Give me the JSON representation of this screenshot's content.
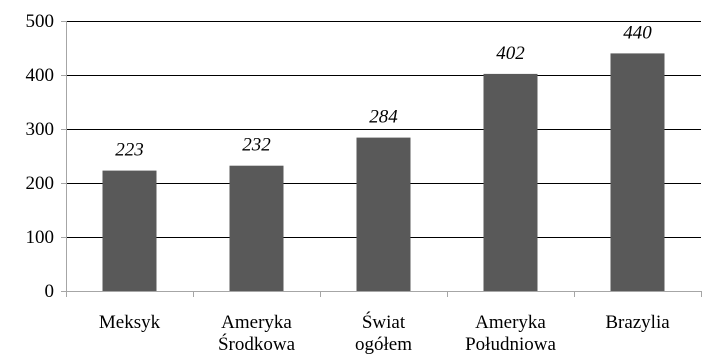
{
  "chart_data": {
    "type": "bar",
    "title": "",
    "xlabel": "",
    "ylabel": "",
    "categories": [
      [
        "Meksyk"
      ],
      [
        "Ameryka",
        "Środkowa"
      ],
      [
        "Świat",
        "ogółem"
      ],
      [
        "Ameryka",
        "Południowa"
      ],
      [
        "Brazylia"
      ]
    ],
    "values": [
      223,
      232,
      284,
      402,
      440
    ],
    "data_labels": [
      "223",
      "232",
      "284",
      "402",
      "440"
    ],
    "ylim": [
      0,
      500
    ],
    "yticks": [
      0,
      100,
      200,
      300,
      400,
      500
    ],
    "ytick_labels": [
      "0",
      "100",
      "200",
      "300",
      "400",
      "500"
    ],
    "gridlines": [
      100,
      200,
      300,
      400,
      500
    ],
    "grid": true,
    "legend": "none",
    "bar_color": "#595959",
    "grid_color": "#000000",
    "axis_color": "#a6a6a6"
  }
}
